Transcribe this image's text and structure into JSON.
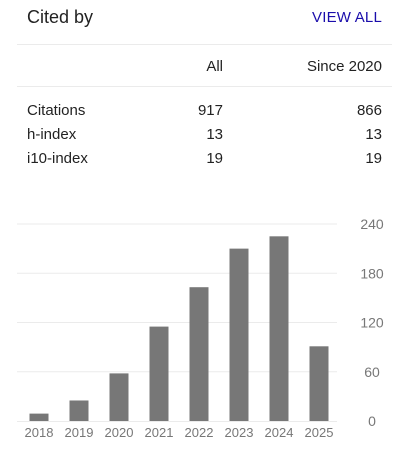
{
  "header": {
    "title": "Cited by",
    "view_all": "VIEW ALL"
  },
  "table": {
    "columns": [
      "All",
      "Since 2020"
    ],
    "rows": [
      {
        "label": "Citations",
        "all": "917",
        "since": "866"
      },
      {
        "label": "h-index",
        "all": "13",
        "since": "13"
      },
      {
        "label": "i10-index",
        "all": "19",
        "since": "19"
      }
    ]
  },
  "colors": {
    "link": "#1a0dab",
    "bar": "#777777",
    "grid": "#ebebeb"
  },
  "chart_data": {
    "type": "bar",
    "categories": [
      "2018",
      "2019",
      "2020",
      "2021",
      "2022",
      "2023",
      "2024",
      "2025"
    ],
    "values": [
      9,
      25,
      58,
      115,
      163,
      210,
      225,
      91
    ],
    "y_ticks": [
      "0",
      "60",
      "120",
      "180",
      "240"
    ],
    "ylim": [
      0,
      240
    ],
    "y_axis_side": "right",
    "grid": true
  }
}
